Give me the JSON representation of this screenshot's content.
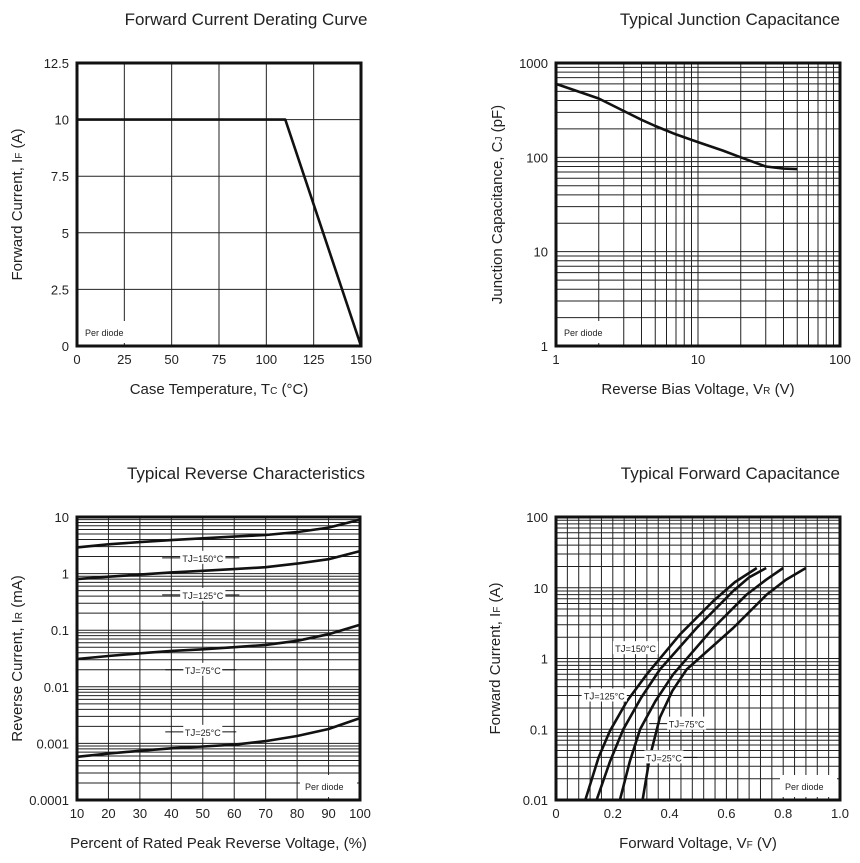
{
  "chart_data": [
    {
      "type": "line",
      "title": "Forward Current Derating Curve",
      "xlabel": {
        "pre": "Case Temperature, T",
        "sub": "C",
        "post": " (°C)"
      },
      "ylabel": {
        "pre": "Forward Current, I",
        "sub": "F",
        "post": " (A)"
      },
      "xscale": "linear",
      "yscale": "linear",
      "xlim": [
        0,
        150
      ],
      "ylim": [
        0,
        12.5
      ],
      "xticks": [
        0,
        25,
        50,
        75,
        100,
        125,
        150
      ],
      "xtick_labels": [
        "0",
        "25",
        "50",
        "75",
        "100",
        "125",
        "150"
      ],
      "yticks": [
        0,
        2.5,
        5,
        7.5,
        10,
        12.5
      ],
      "ytick_labels": [
        "0",
        "2.5",
        "5",
        "7.5",
        "10",
        "12.5"
      ],
      "grid": true,
      "note": "Per diode",
      "series": [
        {
          "x": [
            0,
            110,
            150
          ],
          "y": [
            10,
            10,
            0
          ]
        }
      ]
    },
    {
      "type": "line",
      "title": "Typical Junction Capacitance",
      "xlabel": {
        "pre": "Reverse Bias Voltage, V",
        "sub": "R",
        "post": " (V)"
      },
      "ylabel": {
        "pre": "Junction Capacitance, C",
        "sub": "J",
        "post": " (pF)"
      },
      "xscale": "log",
      "yscale": "log",
      "xlim": [
        1,
        100
      ],
      "ylim": [
        1,
        1000
      ],
      "xticks": [
        1,
        10,
        100
      ],
      "xtick_labels": [
        "1",
        "10",
        "100"
      ],
      "yticks": [
        1,
        10,
        100,
        1000
      ],
      "ytick_labels": [
        "1",
        "10",
        "100",
        "1000"
      ],
      "grid": true,
      "note": "Per diode",
      "series": [
        {
          "x": [
            1,
            2,
            3,
            4,
            5,
            7,
            10,
            15,
            20,
            30,
            40,
            50
          ],
          "y": [
            600,
            420,
            310,
            250,
            215,
            175,
            145,
            118,
            100,
            80,
            76,
            75
          ]
        }
      ]
    },
    {
      "type": "line",
      "title": "Typical Reverse Characteristics",
      "xlabel": {
        "pre": "Percent of Rated Peak Reverse Voltage, (%)",
        "sub": "",
        "post": ""
      },
      "ylabel": {
        "pre": "Reverse Current, I",
        "sub": "R",
        "post": " (mA)"
      },
      "xscale": "linear",
      "yscale": "log",
      "xlim": [
        10,
        100
      ],
      "ylim": [
        0.0001,
        10
      ],
      "xticks": [
        10,
        20,
        30,
        40,
        50,
        60,
        70,
        80,
        90,
        100
      ],
      "xtick_labels": [
        "10",
        "20",
        "30",
        "40",
        "50",
        "60",
        "70",
        "80",
        "90",
        "100"
      ],
      "yticks": [
        0.0001,
        0.001,
        0.01,
        0.1,
        1,
        10
      ],
      "ytick_labels": [
        "0.0001",
        "0.001",
        "0.01",
        "0.1",
        "1",
        "10"
      ],
      "grid": true,
      "note": "Per diode",
      "series": [
        {
          "name": "TJ=150°C",
          "label": {
            "pre": "T",
            "sub": "J",
            "post": "=150°C"
          },
          "label_at": [
            50,
            1.9
          ],
          "x": [
            10,
            20,
            30,
            40,
            50,
            60,
            70,
            80,
            90,
            100
          ],
          "y": [
            2.9,
            3.3,
            3.6,
            3.9,
            4.2,
            4.5,
            4.8,
            5.4,
            6.5,
            9
          ]
        },
        {
          "name": "TJ=125°C",
          "label": {
            "pre": "T",
            "sub": "J",
            "post": "=125°C"
          },
          "label_at": [
            50,
            0.42
          ],
          "x": [
            10,
            20,
            30,
            40,
            50,
            60,
            70,
            80,
            90,
            100
          ],
          "y": [
            0.8,
            0.88,
            0.96,
            1.05,
            1.12,
            1.2,
            1.3,
            1.5,
            1.8,
            2.5
          ]
        },
        {
          "name": "TJ=75°C",
          "label": {
            "pre": "T",
            "sub": "J",
            "post": "=75°C"
          },
          "label_at": [
            50,
            0.02
          ],
          "x": [
            10,
            20,
            30,
            40,
            50,
            60,
            70,
            80,
            90,
            100
          ],
          "y": [
            0.031,
            0.035,
            0.039,
            0.043,
            0.046,
            0.05,
            0.055,
            0.065,
            0.085,
            0.125
          ]
        },
        {
          "name": "TJ=25°C",
          "label": {
            "pre": "T",
            "sub": "J",
            "post": "=25°C"
          },
          "label_at": [
            50,
            0.0016
          ],
          "x": [
            10,
            20,
            30,
            40,
            50,
            60,
            70,
            80,
            90,
            100
          ],
          "y": [
            0.00058,
            0.00066,
            0.00074,
            0.00082,
            0.00088,
            0.00095,
            0.0011,
            0.00135,
            0.0018,
            0.0028
          ]
        }
      ]
    },
    {
      "type": "line",
      "title": "Typical Forward Capacitance",
      "xlabel": {
        "pre": "Forward Voltage, V",
        "sub": "F",
        "post": " (V)"
      },
      "ylabel": {
        "pre": "Forward Current, I",
        "sub": "F",
        "post": " (A)"
      },
      "xscale": "linear",
      "yscale": "log",
      "xlim": [
        0,
        1.0
      ],
      "ylim": [
        0.01,
        100
      ],
      "xticks": [
        0,
        0.2,
        0.4,
        0.6,
        0.8,
        1.0
      ],
      "xtick_labels": [
        "0",
        "0.2",
        "0.4",
        "0.6",
        "0.8",
        "1.0"
      ],
      "xminor_step": 0.04,
      "yticks": [
        0.01,
        0.1,
        1,
        10,
        100
      ],
      "ytick_labels": [
        "0.01",
        "0.1",
        "1",
        "10",
        "100"
      ],
      "grid": true,
      "note": "Per diode",
      "series": [
        {
          "name": "TJ=150°C",
          "label": {
            "pre": "T",
            "sub": "J",
            "post": "=150°C"
          },
          "label_at": [
            0.28,
            1.4
          ],
          "x": [
            0.103,
            0.15,
            0.19,
            0.25,
            0.32,
            0.437,
            0.554,
            0.63,
            0.707
          ],
          "y": [
            0.01,
            0.04,
            0.095,
            0.25,
            0.6,
            2.2,
            6.5,
            12,
            19
          ]
        },
        {
          "name": "TJ=125°C",
          "label": {
            "pre": "T",
            "sub": "J",
            "post": "=125°C"
          },
          "label_at": [
            0.17,
            0.3
          ],
          "x": [
            0.143,
            0.19,
            0.237,
            0.3,
            0.366,
            0.495,
            0.624,
            0.68,
            0.74
          ],
          "y": [
            0.01,
            0.035,
            0.1,
            0.28,
            0.7,
            2.7,
            9,
            14,
            19
          ]
        },
        {
          "name": "TJ=75°C",
          "label": {
            "pre": "T",
            "sub": "J",
            "post": "=75°C"
          },
          "label_at": [
            0.46,
            0.12
          ],
          "x": [
            0.225,
            0.26,
            0.296,
            0.35,
            0.413,
            0.554,
            0.671,
            0.74,
            0.8
          ],
          "y": [
            0.01,
            0.035,
            0.1,
            0.25,
            0.6,
            2.7,
            8,
            13,
            19
          ]
        },
        {
          "name": "TJ=25°C",
          "label": {
            "pre": "T",
            "sub": "J",
            "post": "=25°C"
          },
          "label_at": [
            0.38,
            0.04
          ],
          "x": [
            0.305,
            0.33,
            0.366,
            0.41,
            0.46,
            0.624,
            0.742,
            0.81,
            0.88
          ],
          "y": [
            0.01,
            0.04,
            0.147,
            0.35,
            0.7,
            2.7,
            8,
            13,
            19
          ]
        }
      ]
    }
  ]
}
